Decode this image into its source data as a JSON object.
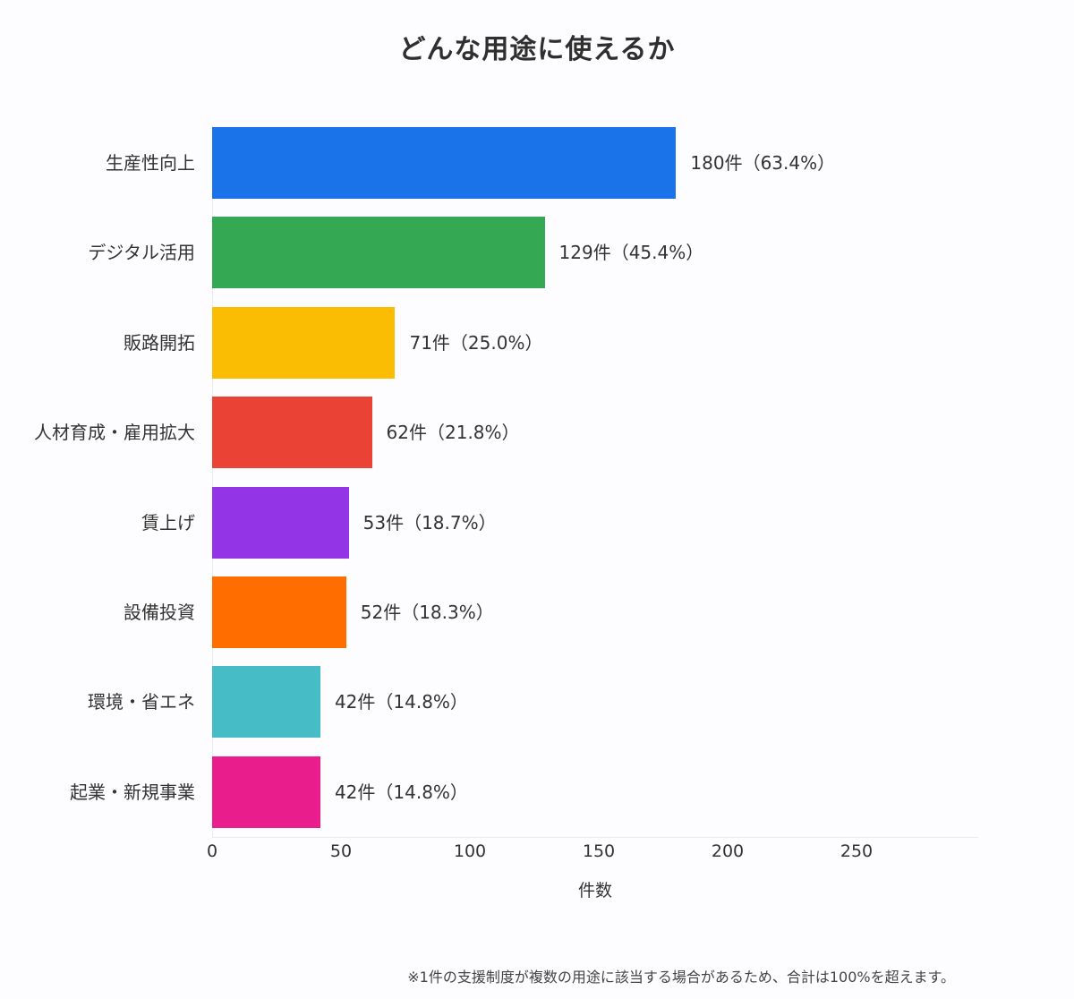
{
  "chart_data": {
    "type": "bar",
    "orientation": "horizontal",
    "title": "どんな用途に使えるか",
    "xlabel": "件数",
    "ylabel": "",
    "xlim": [
      0,
      298
    ],
    "xticks": [
      0,
      50,
      100,
      150,
      200,
      250
    ],
    "grid": false,
    "legend": null,
    "categories": [
      "生産性向上",
      "デジタル活用",
      "販路開拓",
      "人材育成・雇用拡大",
      "賃上げ",
      "設備投資",
      "環境・省エネ",
      "起業・新規事業"
    ],
    "values": [
      180,
      129,
      71,
      62,
      53,
      52,
      42,
      42
    ],
    "percentages": [
      63.4,
      45.4,
      25.0,
      21.8,
      18.7,
      18.3,
      14.8,
      14.8
    ],
    "data_labels": [
      "180件（63.4%）",
      "129件（45.4%）",
      "71件（25.0%）",
      "62件（21.8%）",
      "53件（18.7%）",
      "52件（18.3%）",
      "42件（14.8%）",
      "42件（14.8%）"
    ],
    "colors": [
      "#1a73e8",
      "#34a853",
      "#fbbc04",
      "#ea4335",
      "#9334e6",
      "#ff6d01",
      "#46bdc6",
      "#e91e8c"
    ],
    "footnote": "※1件の支援制度が複数の用途に該当する場合があるため、合計は100%を超えます。"
  },
  "ticks": [
    "0",
    "50",
    "100",
    "150",
    "200",
    "250"
  ]
}
